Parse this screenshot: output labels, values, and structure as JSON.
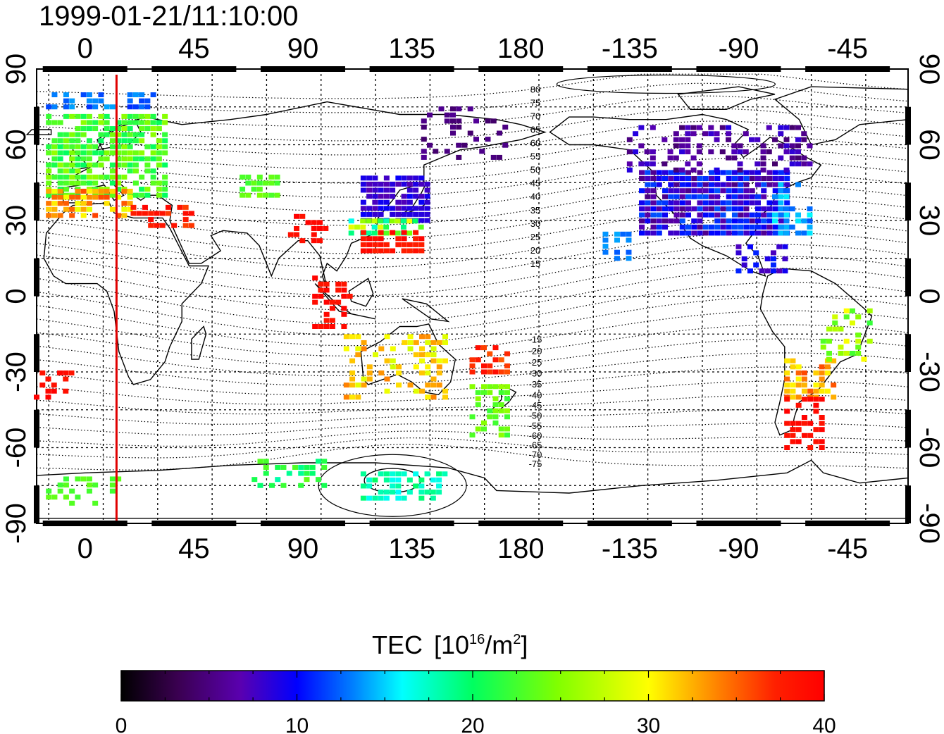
{
  "title": "1999-01-21/11:10:00",
  "map": {
    "x_tick_labels_top": [
      "0",
      "45",
      "90",
      "135",
      "180",
      "-135",
      "-90",
      "-45"
    ],
    "x_tick_labels_bottom": [
      "0",
      "45",
      "90",
      "135",
      "180",
      "-135",
      "-90",
      "-45"
    ],
    "y_tick_labels_left": [
      "90",
      "60",
      "30",
      "0",
      "-30",
      "-60",
      "-90"
    ],
    "y_tick_labels_right": [
      "90",
      "60",
      "30",
      "0",
      "-30",
      "-60",
      "-90"
    ],
    "magnetic_lat_labels": [
      "80",
      "75",
      "70",
      "65",
      "60",
      "55",
      "50",
      "45",
      "40",
      "35",
      "30",
      "25",
      "20",
      "15",
      "-15",
      "-20",
      "-25",
      "-30",
      "-35",
      "-40",
      "-45",
      "-50",
      "-55",
      "-60",
      "-65",
      "-70",
      "-75"
    ],
    "time_marker_longitude": 13,
    "time_marker_color": "#e00000",
    "lon_range": [
      -20,
      340
    ],
    "lat_range": [
      -90,
      90
    ]
  },
  "colorbar": {
    "title": "TEC",
    "unit_prefix": "[10",
    "unit_exp": "16",
    "unit_mid": "/m",
    "unit_exp2": "2",
    "unit_suffix": "]",
    "min": 0,
    "max": 40,
    "tick_labels": [
      "0",
      "10",
      "20",
      "30",
      "40"
    ],
    "colormap": "black-purple-blue-cyan-green-yellow-orange-red"
  }
}
